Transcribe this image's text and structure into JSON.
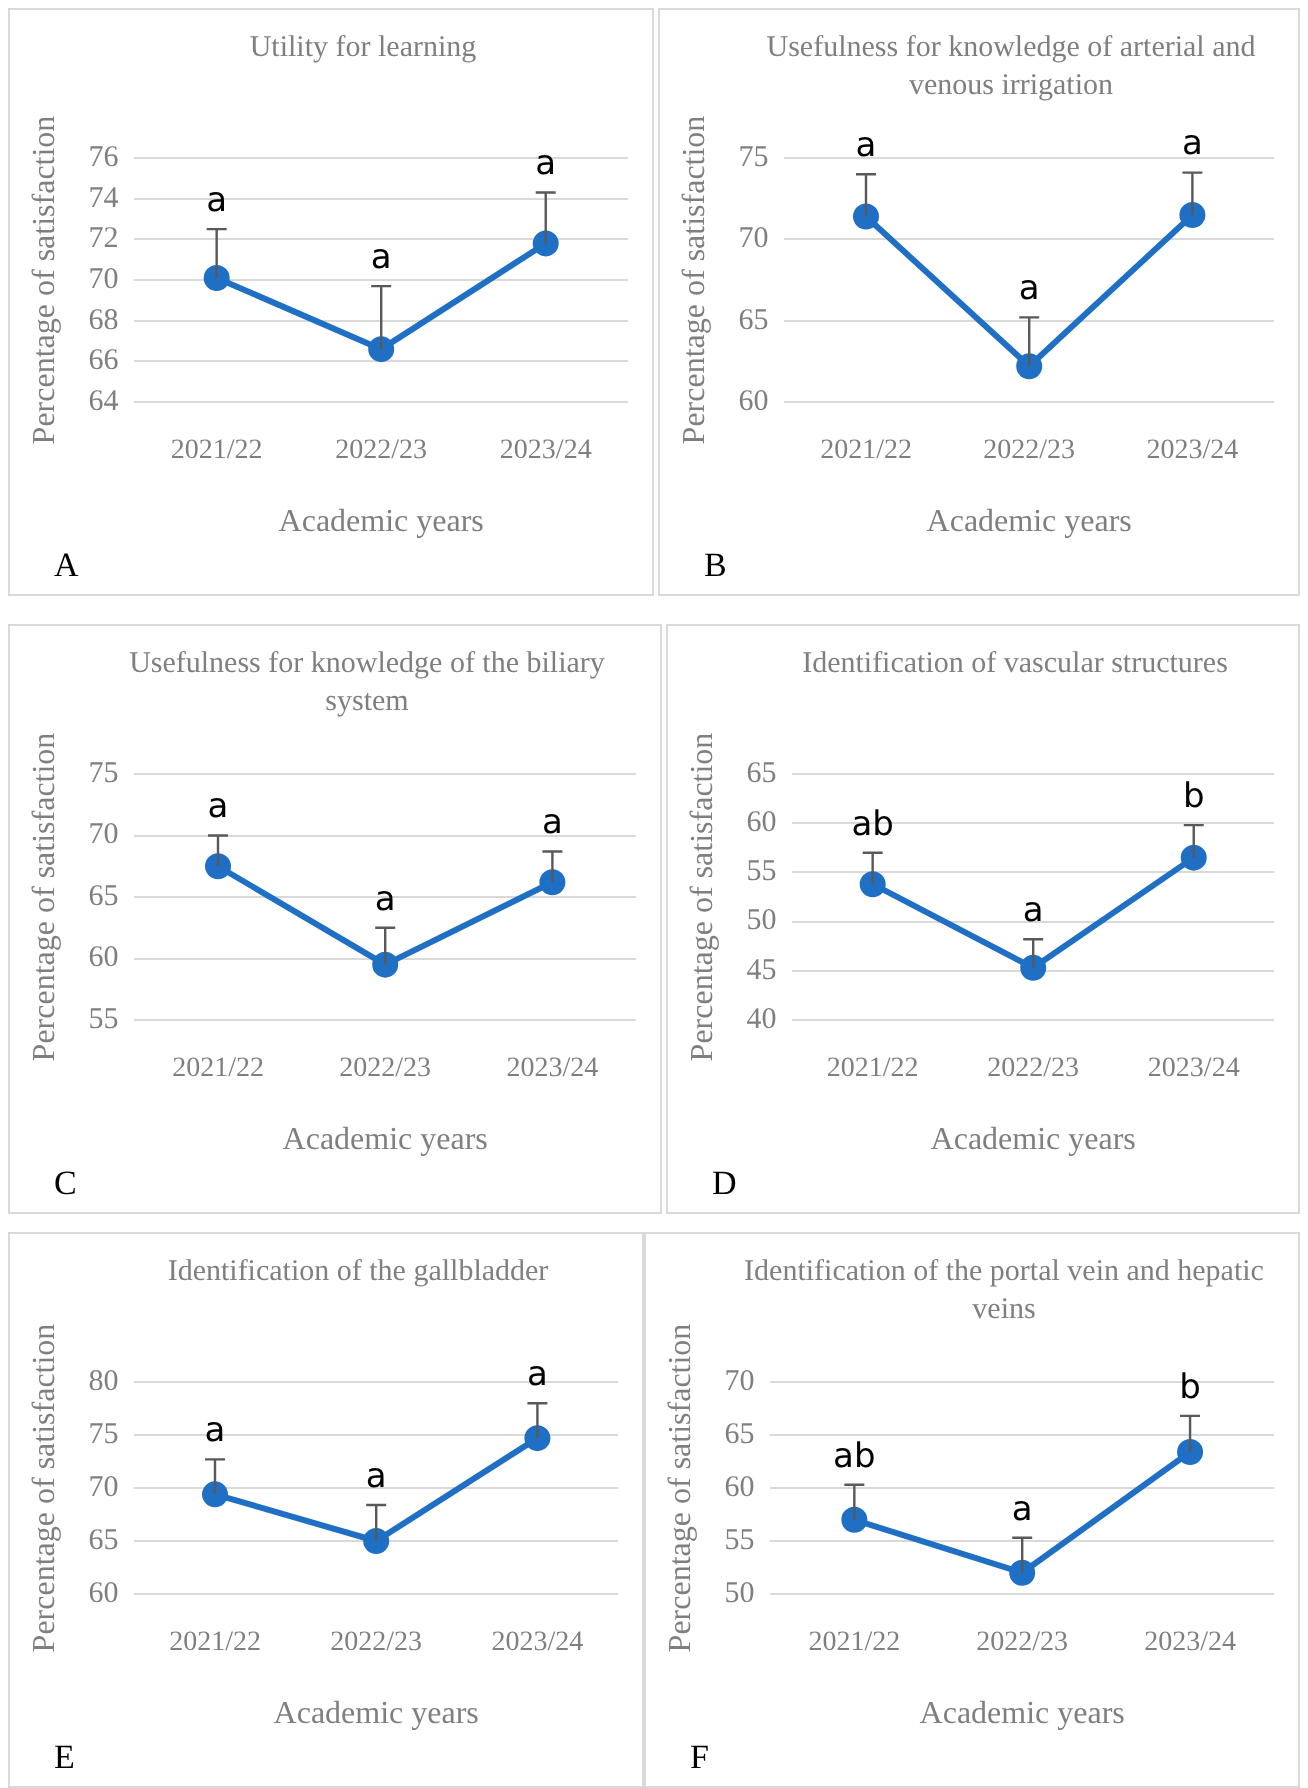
{
  "chart_data": [
    {
      "type": "line",
      "title": "Utility for learning",
      "xlabel": "Academic years",
      "ylabel": "Percentage of satisfaction",
      "categories": [
        "2021/22",
        "2022/23",
        "2023/24"
      ],
      "series": [
        {
          "color": "#1f6fc5",
          "values": [
            70.1,
            66.6,
            71.8
          ],
          "errors": [
            [
              70.1,
              72.5
            ],
            [
              66.6,
              69.7
            ],
            [
              71.8,
              74.3
            ]
          ]
        }
      ],
      "ylim": [
        64,
        76
      ],
      "yticks": [
        64,
        66,
        68,
        70,
        72,
        74,
        76
      ],
      "grid": "y",
      "legend": false,
      "marker": "circle",
      "line_style": "solid",
      "annotations": [
        {
          "text": "a",
          "x": "2021/22",
          "y": 70.1
        },
        {
          "text": "a",
          "x": "2022/23",
          "y": 66.6
        },
        {
          "text": "a",
          "x": "2023/24",
          "y": 71.8
        },
        "A"
      ]
    },
    {
      "type": "line",
      "title": "Usefulness for knowledge of arterial and venous irrigation",
      "xlabel": "Academic years",
      "ylabel": "Percentage of satisfaction",
      "categories": [
        "2021/22",
        "2022/23",
        "2023/24"
      ],
      "series": [
        {
          "color": "#1f6fc5",
          "values": [
            71.4,
            62.2,
            71.5
          ],
          "errors": [
            [
              71.4,
              74.0
            ],
            [
              62.2,
              65.2
            ],
            [
              71.5,
              74.1
            ]
          ]
        }
      ],
      "ylim": [
        60,
        75
      ],
      "yticks": [
        60,
        65,
        70,
        75
      ],
      "grid": "y",
      "legend": false,
      "marker": "circle",
      "line_style": "solid",
      "annotations": [
        {
          "text": "a",
          "x": "2021/22",
          "y": 71.4
        },
        {
          "text": "a",
          "x": "2022/23",
          "y": 62.2
        },
        {
          "text": "a",
          "x": "2023/24",
          "y": 71.5
        },
        "B"
      ]
    },
    {
      "type": "line",
      "title": "Usefulness for knowledge of the biliary system",
      "xlabel": "Academic years",
      "ylabel": "Percentage of satisfaction",
      "categories": [
        "2021/22",
        "2022/23",
        "2023/24"
      ],
      "series": [
        {
          "color": "#1f6fc5",
          "values": [
            67.5,
            59.5,
            66.2
          ],
          "errors": [
            [
              67.5,
              70.0
            ],
            [
              59.5,
              62.5
            ],
            [
              66.2,
              68.7
            ]
          ]
        }
      ],
      "ylim": [
        55,
        75
      ],
      "yticks": [
        55,
        60,
        65,
        70,
        75
      ],
      "grid": "y",
      "legend": false,
      "marker": "circle",
      "line_style": "solid",
      "annotations": [
        {
          "text": "a",
          "x": "2021/22",
          "y": 67.5
        },
        {
          "text": "a",
          "x": "2022/23",
          "y": 59.5
        },
        {
          "text": "a",
          "x": "2023/24",
          "y": 66.2
        },
        "C"
      ]
    },
    {
      "type": "line",
      "title": "Identification of vascular structures",
      "xlabel": "Academic years",
      "ylabel": "Percentage of satisfaction",
      "categories": [
        "2021/22",
        "2022/23",
        "2023/24"
      ],
      "series": [
        {
          "color": "#1f6fc5",
          "values": [
            53.8,
            45.3,
            56.5
          ],
          "errors": [
            [
              53.8,
              57.0
            ],
            [
              45.3,
              48.2
            ],
            [
              56.5,
              59.8
            ]
          ]
        }
      ],
      "ylim": [
        40,
        65
      ],
      "yticks": [
        40,
        45,
        50,
        55,
        60,
        65
      ],
      "grid": "y",
      "legend": false,
      "marker": "circle",
      "line_style": "solid",
      "annotations": [
        {
          "text": "ab",
          "x": "2021/22",
          "y": 53.8
        },
        {
          "text": "a",
          "x": "2022/23",
          "y": 45.3
        },
        {
          "text": "b",
          "x": "2023/24",
          "y": 56.5
        },
        "D"
      ]
    },
    {
      "type": "line",
      "title": "Identification of the gallbladder",
      "xlabel": "Academic years",
      "ylabel": "Percentage of satisfaction",
      "categories": [
        "2021/22",
        "2022/23",
        "2023/24"
      ],
      "series": [
        {
          "color": "#1f6fc5",
          "values": [
            69.4,
            65.0,
            74.7
          ],
          "errors": [
            [
              69.4,
              72.7
            ],
            [
              65.0,
              68.4
            ],
            [
              74.7,
              78.0
            ]
          ]
        }
      ],
      "ylim": [
        60,
        80
      ],
      "yticks": [
        60,
        65,
        70,
        75,
        80
      ],
      "grid": "y",
      "legend": false,
      "marker": "circle",
      "line_style": "solid",
      "annotations": [
        {
          "text": "a",
          "x": "2021/22",
          "y": 69.4
        },
        {
          "text": "a",
          "x": "2022/23",
          "y": 65.0
        },
        {
          "text": "a",
          "x": "2023/24",
          "y": 74.7
        },
        "E"
      ]
    },
    {
      "type": "line",
      "title": "Identification of the portal vein and hepatic veins",
      "xlabel": "Academic years",
      "ylabel": "Percentage of satisfaction",
      "categories": [
        "2021/22",
        "2022/23",
        "2023/24"
      ],
      "series": [
        {
          "color": "#1f6fc5",
          "values": [
            57.0,
            52.0,
            63.4
          ],
          "errors": [
            [
              57.0,
              60.3
            ],
            [
              52.0,
              55.3
            ],
            [
              63.4,
              66.8
            ]
          ]
        }
      ],
      "ylim": [
        50,
        70
      ],
      "yticks": [
        50,
        55,
        60,
        65,
        70
      ],
      "grid": "y",
      "legend": false,
      "marker": "circle",
      "line_style": "solid",
      "annotations": [
        {
          "text": "ab",
          "x": "2021/22",
          "y": 57.0
        },
        {
          "text": "a",
          "x": "2022/23",
          "y": 52.0
        },
        {
          "text": "b",
          "x": "2023/24",
          "y": 63.4
        },
        "F"
      ]
    }
  ]
}
